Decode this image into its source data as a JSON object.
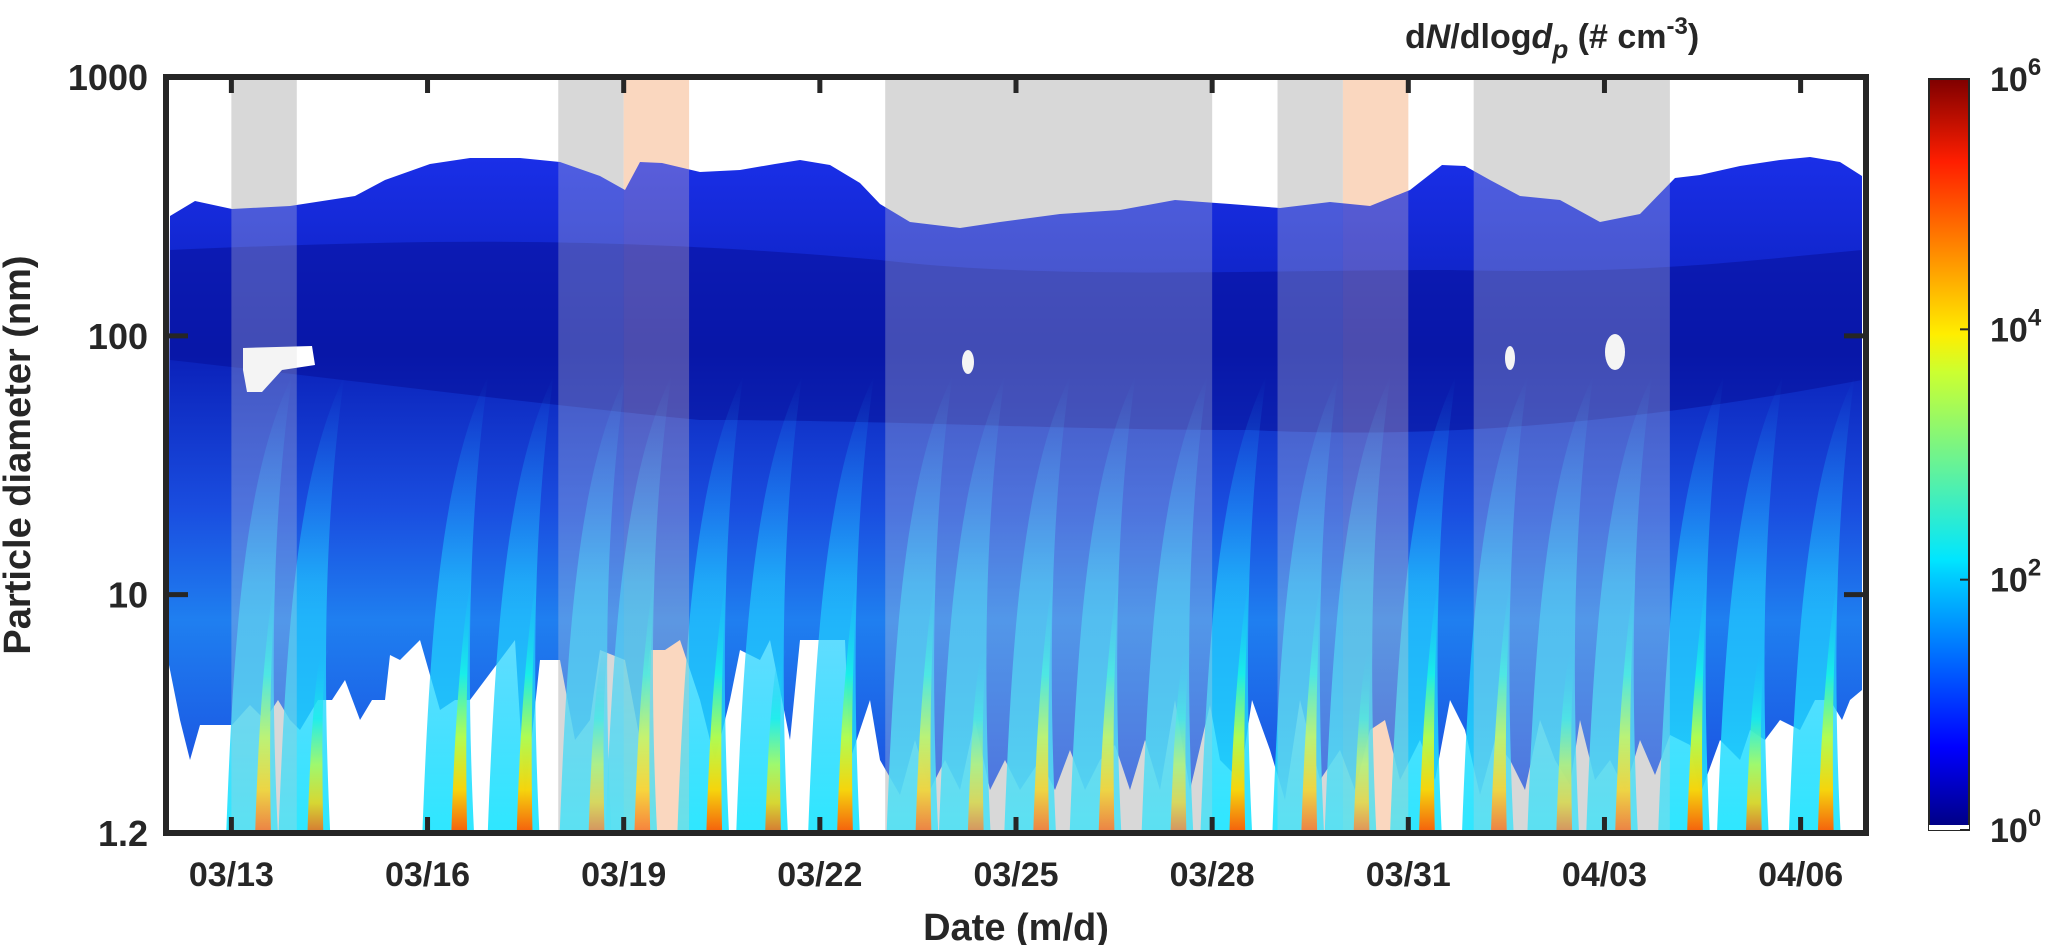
{
  "chart_data": {
    "type": "heatmap",
    "title": "",
    "colorbar_label": {
      "prefix": "d",
      "N": "N",
      "mid": "/dlog",
      "d": "d",
      "sub": "p",
      "unit": " (# cm",
      "exp": "-3",
      "close": ")"
    },
    "xlabel": "Date (m/d)",
    "ylabel": "Particle diameter (nm)",
    "x_ticks": [
      "03/13",
      "03/16",
      "03/19",
      "03/22",
      "03/25",
      "03/28",
      "03/31",
      "04/03",
      "04/06"
    ],
    "x_tick_day_index": [
      13,
      16,
      19,
      22,
      25,
      28,
      31,
      34,
      37
    ],
    "xlim_day_index": [
      12.0,
      38.0
    ],
    "y_scale": "log",
    "ylim": [
      1.2,
      1000
    ],
    "y_ticks": [
      "1000",
      "100",
      "10",
      "1.2"
    ],
    "y_tick_values": [
      1000,
      100,
      10,
      1.2
    ],
    "colorbar": {
      "scale": "log",
      "range": [
        1,
        1000000
      ],
      "ticks": [
        {
          "value": 1000000,
          "base": "10",
          "exp": "6"
        },
        {
          "value": 10000,
          "base": "10",
          "exp": "4"
        },
        {
          "value": 100,
          "base": "10",
          "exp": "2"
        },
        {
          "value": 1,
          "base": "10",
          "exp": "0"
        }
      ],
      "colormap": "jet"
    },
    "shaded_periods": [
      {
        "start": 13.0,
        "end": 14.0,
        "color": "#d9d9d9"
      },
      {
        "start": 18.0,
        "end": 19.0,
        "color": "#d9d9d9"
      },
      {
        "start": 19.0,
        "end": 20.0,
        "color": "#fad7c0"
      },
      {
        "start": 23.0,
        "end": 28.0,
        "color": "#d9d9d9"
      },
      {
        "start": 29.0,
        "end": 30.0,
        "color": "#d9d9d9"
      },
      {
        "start": 30.0,
        "end": 31.0,
        "color": "#fad7c0"
      },
      {
        "start": 32.0,
        "end": 35.0,
        "color": "#d9d9d9"
      }
    ],
    "nucleation_events_day": [
      13.5,
      14.3,
      16.5,
      17.5,
      18.6,
      19.3,
      20.4,
      21.3,
      22.4,
      23.6,
      24.4,
      25.4,
      26.4,
      27.5,
      28.4,
      29.5,
      30.3,
      31.3,
      32.4,
      33.4,
      34.3,
      35.4,
      36.3,
      37.4
    ],
    "grid": false
  }
}
